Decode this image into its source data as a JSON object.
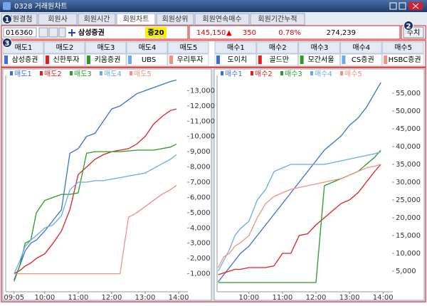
{
  "window": {
    "title": "0328 거래원차트"
  },
  "callouts": [
    "1",
    "2",
    "3"
  ],
  "tabs": [
    "회원결첨",
    "회원사",
    "회원시간",
    "회원차트",
    "회원상위",
    "회원연속매수",
    "회원기간누적"
  ],
  "quote": {
    "code": "016360",
    "name": "삼성증권",
    "badge": "증20",
    "price": "145,150",
    "arrow": "▲",
    "change": "350",
    "rate": "0.78%",
    "volume": "274,239",
    "button": "수치"
  },
  "sell_headers": [
    "매도1",
    "매도2",
    "매도3",
    "매도4",
    "매도5"
  ],
  "sell_brokers": [
    "삼성증권",
    "신한투자",
    "키움증권",
    "UBS",
    "우리투자"
  ],
  "buy_headers": [
    "매수1",
    "매수2",
    "매수3",
    "매수4",
    "매수5"
  ],
  "buy_brokers": [
    "도이치",
    "골드만",
    "모간서울",
    "CS증권",
    "HSBC증권"
  ],
  "chart_data": [
    {
      "type": "line",
      "x": [
        545,
        555,
        565,
        575,
        585,
        600,
        615,
        630,
        645,
        660,
        675,
        690,
        705,
        720,
        735,
        750,
        765,
        780,
        795,
        810,
        825,
        836
      ],
      "xlim": [
        530,
        854
      ],
      "xticks": [
        {
          "value": 545,
          "label": "09:05"
        },
        {
          "value": 600,
          "label": "10:00"
        },
        {
          "value": 660,
          "label": "11:00"
        },
        {
          "value": 720,
          "label": "12:00"
        },
        {
          "value": 780,
          "label": "13:00"
        },
        {
          "value": 840,
          "label": "14:00"
        }
      ],
      "ylim": [
        0,
        14000
      ],
      "yticks": [
        {
          "value": 1000,
          "label": "1,000"
        },
        {
          "value": 2000,
          "label": "2,000"
        },
        {
          "value": 3000,
          "label": "3,000"
        },
        {
          "value": 4000,
          "label": "4,000"
        },
        {
          "value": 5000,
          "label": "5,000"
        },
        {
          "value": 6000,
          "label": "6,000"
        },
        {
          "value": 7000,
          "label": "7,000"
        },
        {
          "value": 8000,
          "label": "8,000"
        },
        {
          "value": 9000,
          "label": "9,000"
        },
        {
          "value": 10000,
          "label": "10,000"
        },
        {
          "value": 11000,
          "label": "11,000"
        },
        {
          "value": 12000,
          "label": "12,000"
        },
        {
          "value": 13000,
          "label": "13,000"
        }
      ],
      "series": [
        {
          "name": "매도1",
          "color": "#3c6fd6",
          "values": [
            600,
            1500,
            2500,
            3000,
            3200,
            3800,
            4500,
            5200,
            8900,
            9200,
            10000,
            10200,
            11000,
            11800,
            12000,
            12400,
            12800,
            13000,
            13200,
            13400,
            13600,
            13700
          ]
        },
        {
          "name": "매도2",
          "color": "#e02020",
          "values": [
            1000,
            1200,
            1500,
            1700,
            2000,
            2300,
            3000,
            3800,
            5200,
            7500,
            8000,
            8500,
            8800,
            9000,
            9100,
            9200,
            9500,
            10000,
            10800,
            11300,
            11700,
            11800
          ]
        },
        {
          "name": "매도3",
          "color": "#2a9a2a",
          "values": [
            500,
            1500,
            3000,
            3200,
            5000,
            5800,
            6000,
            6200,
            6200,
            6300,
            8900,
            9000,
            9000,
            9000,
            9000,
            9050,
            9100,
            9100,
            9100,
            9200,
            9300,
            9500
          ]
        },
        {
          "name": "매도4",
          "color": "#6aaae8",
          "values": [
            1000,
            1800,
            2800,
            3200,
            3500,
            4000,
            4200,
            4800,
            6500,
            7000,
            7000,
            7100,
            7100,
            7200,
            7300,
            7400,
            7500,
            7600,
            7900,
            8200,
            8500,
            8800
          ]
        },
        {
          "name": "매도5",
          "color": "#f09080",
          "values": [
            1000,
            1000,
            1000,
            1000,
            1000,
            1000,
            1000,
            1000,
            1000,
            1000,
            1000,
            1000,
            1000,
            1000,
            1000,
            4700,
            5000,
            5400,
            5800,
            6200,
            6500,
            6800
          ]
        }
      ]
    },
    {
      "type": "line",
      "x": [
        545,
        555,
        565,
        575,
        585,
        600,
        615,
        630,
        645,
        660,
        675,
        690,
        705,
        720,
        735,
        750,
        765,
        780,
        795,
        810,
        825,
        836
      ],
      "xlim": [
        543,
        855
      ],
      "xticks": [
        {
          "value": 600,
          "label": "10:00"
        },
        {
          "value": 660,
          "label": "11:00"
        },
        {
          "value": 720,
          "label": "12:00"
        },
        {
          "value": 780,
          "label": "13:00"
        },
        {
          "value": 840,
          "label": "14:00"
        }
      ],
      "ylim": [
        0,
        60000
      ],
      "yticks": [
        {
          "value": 5000,
          "label": "5,000"
        },
        {
          "value": 10000,
          "label": "10,000"
        },
        {
          "value": 15000,
          "label": "15,000"
        },
        {
          "value": 20000,
          "label": "20,000"
        },
        {
          "value": 25000,
          "label": "25,000"
        },
        {
          "value": 30000,
          "label": "30,000"
        },
        {
          "value": 35000,
          "label": "35,000"
        },
        {
          "value": 40000,
          "label": "40,000"
        },
        {
          "value": 45000,
          "label": "45,000"
        },
        {
          "value": 50000,
          "label": "50,000"
        },
        {
          "value": 55000,
          "label": "55,000"
        }
      ],
      "series": [
        {
          "name": "매수1",
          "color": "#3c6fd6",
          "values": [
            2000,
            4000,
            6000,
            8000,
            10000,
            12000,
            15000,
            18000,
            21000,
            24000,
            27000,
            30000,
            33000,
            36000,
            39000,
            41000,
            43000,
            46000,
            48000,
            51000,
            55000,
            58000
          ]
        },
        {
          "name": "매수2",
          "color": "#e02020",
          "values": [
            4000,
            4500,
            5000,
            5500,
            5500,
            6000,
            6000,
            6000,
            6500,
            10000,
            10000,
            15000,
            15500,
            18000,
            20000,
            22000,
            24000,
            25000,
            27000,
            30000,
            33000,
            35000
          ]
        },
        {
          "name": "매수3",
          "color": "#2a9a2a",
          "values": [
            1800,
            1800,
            1800,
            1800,
            1800,
            1800,
            1800,
            1800,
            1800,
            1800,
            1800,
            1800,
            1800,
            1800,
            29000,
            30000,
            31000,
            32000,
            33000,
            35000,
            37000,
            39000
          ]
        },
        {
          "name": "매수4",
          "color": "#6aaae8",
          "values": [
            5000,
            8000,
            11000,
            15000,
            17000,
            19000,
            25000,
            28000,
            33000,
            34000,
            35000,
            35000,
            35000,
            35000,
            35000,
            35500,
            36000,
            36500,
            37000,
            37500,
            38000,
            38500
          ]
        },
        {
          "name": "매수5",
          "color": "#f09080",
          "values": [
            6000,
            9000,
            10000,
            12000,
            13000,
            15000,
            20000,
            24000,
            26000,
            27000,
            28000,
            28500,
            29000,
            29500,
            30000,
            30500,
            31000,
            32000,
            33000,
            34000,
            34500,
            35000
          ]
        }
      ]
    }
  ]
}
